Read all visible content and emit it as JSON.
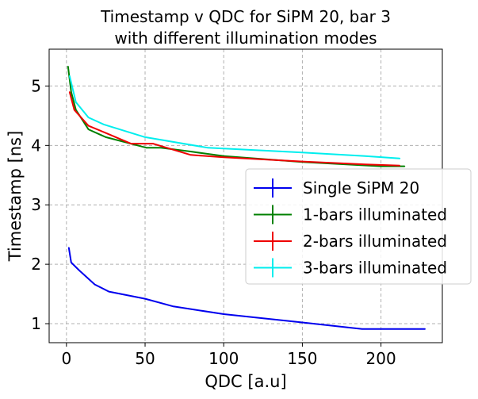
{
  "chart_data": {
    "type": "line",
    "title": "Timestamp v QDC for SiPM 20, bar 3",
    "subtitle": "with different illumination modes",
    "xlabel": "QDC [a.u]",
    "ylabel": "Timestamp [ns]",
    "xlim": [
      -11,
      239
    ],
    "ylim": [
      0.68,
      5.62
    ],
    "xticks": [
      0,
      50,
      100,
      150,
      200
    ],
    "yticks": [
      1,
      2,
      3,
      4,
      5
    ],
    "grid": true,
    "legend_position": "center-right",
    "series": [
      {
        "name": "Single SiPM 20",
        "color": "#0000ee",
        "points": [
          [
            1.5,
            2.28
          ],
          [
            3,
            2.03
          ],
          [
            8,
            1.9
          ],
          [
            18,
            1.66
          ],
          [
            27,
            1.54
          ],
          [
            50,
            1.42
          ],
          [
            68,
            1.29
          ],
          [
            100,
            1.16
          ],
          [
            150,
            1.02
          ],
          [
            188,
            0.91
          ],
          [
            228,
            0.91
          ]
        ]
      },
      {
        "name": "1-bars illuminated",
        "color": "#008000",
        "points": [
          [
            1,
            5.33
          ],
          [
            3,
            4.9
          ],
          [
            6,
            4.6
          ],
          [
            14,
            4.27
          ],
          [
            25,
            4.14
          ],
          [
            51,
            3.96
          ],
          [
            60,
            3.96
          ],
          [
            78,
            3.9
          ],
          [
            100,
            3.82
          ],
          [
            150,
            3.72
          ],
          [
            200,
            3.65
          ],
          [
            215,
            3.65
          ]
        ]
      },
      {
        "name": "2-bars illuminated",
        "color": "#ee0000",
        "points": [
          [
            2,
            4.9
          ],
          [
            5,
            4.6
          ],
          [
            14,
            4.33
          ],
          [
            26,
            4.2
          ],
          [
            41,
            4.03
          ],
          [
            55,
            4.03
          ],
          [
            79,
            3.84
          ],
          [
            100,
            3.8
          ],
          [
            150,
            3.73
          ],
          [
            190,
            3.68
          ],
          [
            212,
            3.66
          ]
        ]
      },
      {
        "name": "3-bars illuminated",
        "color": "#00eeee",
        "points": [
          [
            2,
            5.17
          ],
          [
            6,
            4.73
          ],
          [
            14,
            4.47
          ],
          [
            24,
            4.35
          ],
          [
            50,
            4.14
          ],
          [
            90,
            3.96
          ],
          [
            150,
            3.88
          ],
          [
            190,
            3.82
          ],
          [
            212,
            3.78
          ]
        ]
      }
    ]
  }
}
